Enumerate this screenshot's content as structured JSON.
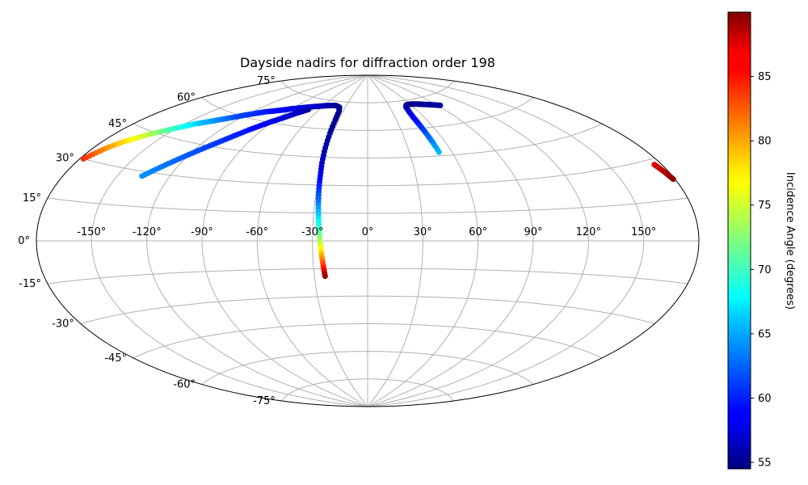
{
  "chart_data": {
    "type": "scatter",
    "projection": "aitoff",
    "title": "Dayside nadirs for diffraction order 198",
    "grid": true,
    "x_ticks": [
      "-150°",
      "-120°",
      "-90°",
      "-60°",
      "-30°",
      "0°",
      "30°",
      "60°",
      "90°",
      "120°",
      "150°"
    ],
    "x_tick_values": [
      -150,
      -120,
      -90,
      -60,
      -30,
      0,
      30,
      60,
      90,
      120,
      150
    ],
    "y_ticks": [
      "-75°",
      "-60°",
      "-45°",
      "-30°",
      "-15°",
      "0°",
      "15°",
      "30°",
      "45°",
      "60°",
      "75°"
    ],
    "y_tick_values": [
      -75,
      -60,
      -45,
      -30,
      -15,
      0,
      15,
      30,
      45,
      60,
      75
    ],
    "colorbar": {
      "label": "Incidence Angle (degrees)",
      "range": [
        54.5,
        90
      ],
      "ticks": [
        "55",
        "60",
        "65",
        "70",
        "75",
        "80",
        "85"
      ],
      "tick_values": [
        55,
        60,
        65,
        70,
        75,
        80,
        85
      ],
      "colormap": "jet"
    },
    "tracks": [
      {
        "points": [
          [
            -178,
            30,
            84
          ],
          [
            -175,
            33,
            82
          ],
          [
            -172,
            36,
            80
          ],
          [
            -168,
            39,
            78
          ],
          [
            -164,
            41.5,
            76
          ],
          [
            -160,
            44,
            74
          ],
          [
            -156,
            46,
            72
          ],
          [
            -152,
            48,
            70
          ],
          [
            -148,
            50,
            68.5
          ],
          [
            -144,
            52,
            67
          ],
          [
            -140,
            53.5,
            65.5
          ],
          [
            -136,
            55,
            64.5
          ],
          [
            -132,
            56.5,
            63.5
          ],
          [
            -128,
            58,
            62.5
          ],
          [
            -124,
            59.5,
            61.5
          ],
          [
            -120,
            61,
            61
          ],
          [
            -115,
            62.5,
            60.5
          ],
          [
            -110,
            64,
            60
          ],
          [
            -105,
            65,
            59.5
          ],
          [
            -100,
            66,
            59
          ],
          [
            -95,
            67,
            58.7
          ],
          [
            -90,
            68,
            58.4
          ],
          [
            -85,
            68.8,
            58.1
          ],
          [
            -80,
            69.5,
            57.8
          ],
          [
            -75,
            70.2,
            57.5
          ],
          [
            -70,
            70.8,
            57.2
          ],
          [
            -65,
            71.3,
            56.9
          ],
          [
            -60,
            71.8,
            56.6
          ],
          [
            -55,
            72.2,
            56.2
          ],
          [
            -50,
            72.5,
            55.8
          ],
          [
            -45,
            72.7,
            55.3
          ],
          [
            -42,
            72.5,
            55
          ],
          [
            -38,
            72,
            55
          ],
          [
            -35,
            70,
            55
          ],
          [
            -33.5,
            65,
            55
          ],
          [
            -32.5,
            58,
            55.5
          ],
          [
            -31.5,
            50,
            56
          ],
          [
            -30.5,
            42,
            57
          ],
          [
            -29.5,
            35,
            58.5
          ],
          [
            -28.8,
            28,
            60.5
          ],
          [
            -28,
            21,
            63
          ],
          [
            -27.3,
            14,
            66
          ],
          [
            -26.6,
            7,
            69.5
          ],
          [
            -26,
            1,
            73
          ],
          [
            -25.4,
            -5,
            77
          ],
          [
            -24.9,
            -10,
            81
          ],
          [
            -24.4,
            -15,
            85
          ],
          [
            -24,
            -19,
            89
          ]
        ]
      },
      {
        "points": [
          [
            -136,
            28,
            64
          ],
          [
            -132,
            31,
            63.5
          ],
          [
            -128,
            34,
            63
          ],
          [
            -124,
            37,
            62.5
          ],
          [
            -120,
            40,
            62
          ],
          [
            -116,
            43,
            61.5
          ],
          [
            -112,
            46,
            61
          ],
          [
            -108,
            49,
            60.5
          ],
          [
            -104,
            52,
            60
          ],
          [
            -100,
            55,
            59.5
          ],
          [
            -96,
            57.5,
            59
          ],
          [
            -92,
            60,
            58.5
          ],
          [
            -88,
            62,
            58
          ],
          [
            -84,
            64,
            57.5
          ],
          [
            -80,
            66,
            57
          ],
          [
            -76,
            67.5,
            56.5
          ],
          [
            -72,
            69,
            56
          ]
        ]
      },
      {
        "points": [
          [
            51,
            47,
            65.5
          ],
          [
            50.5,
            52,
            64
          ],
          [
            50,
            56,
            62.5
          ],
          [
            49.5,
            60,
            61
          ],
          [
            49.2,
            63,
            60
          ],
          [
            49,
            66,
            59
          ],
          [
            49.5,
            69,
            58
          ],
          [
            51,
            71.5,
            57
          ],
          [
            54,
            72.6,
            56
          ],
          [
            58,
            72.8,
            55.5
          ],
          [
            63,
            72.7,
            55.3
          ],
          [
            68,
            72.4,
            55.2
          ],
          [
            73,
            72,
            55.2
          ],
          [
            78,
            71.5,
            55.3
          ],
          [
            83,
            71,
            55.5
          ],
          [
            88,
            70.4,
            55.7
          ],
          [
            93,
            69.7,
            56
          ]
        ]
      },
      {
        "points": [
          [
            176,
            28,
            86.5
          ],
          [
            177,
            26,
            87.5
          ],
          [
            178,
            24,
            88.5
          ],
          [
            179,
            22,
            89.5
          ]
        ]
      }
    ]
  }
}
